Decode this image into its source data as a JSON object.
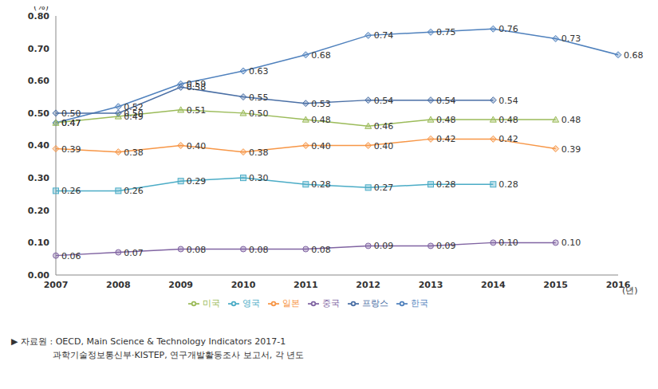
{
  "chart_data": {
    "type": "line",
    "y_label": "(%)",
    "x_label": "(년)",
    "categories": [
      "2007",
      "2008",
      "2009",
      "2010",
      "2011",
      "2012",
      "2013",
      "2014",
      "2015",
      "2016"
    ],
    "series": [
      {
        "name": "한국",
        "color": "#4f81bd",
        "marker": "diamond",
        "values": [
          0.47,
          0.52,
          0.59,
          0.63,
          0.68,
          0.74,
          0.75,
          0.76,
          0.73,
          0.68
        ],
        "value_labels": [
          "0.47",
          "0.52",
          "0.59",
          "0.63",
          "0.68",
          "0.74",
          "0.75",
          "0.76",
          "0.73",
          "0.68"
        ]
      },
      {
        "name": "미국",
        "color": "#9bbb59",
        "marker": "triangle",
        "values": [
          0.47,
          0.49,
          0.51,
          0.5,
          0.48,
          0.46,
          0.48,
          0.48,
          0.48,
          null
        ],
        "value_labels": [
          "0.47",
          "0.49",
          "0.51",
          "0.50",
          "0.48",
          "0.46",
          "0.48",
          "0.48",
          "0.48",
          null
        ]
      },
      {
        "name": "일본",
        "color": "#f79646",
        "marker": "diamond",
        "values": [
          0.39,
          0.38,
          0.4,
          0.38,
          0.4,
          0.4,
          0.42,
          0.42,
          0.39,
          null
        ],
        "value_labels": [
          "0.39",
          "0.38",
          "0.40",
          "0.38",
          "0.40",
          "0.40",
          "0.42",
          "0.42",
          "0.39",
          null
        ]
      },
      {
        "name": "프랑스",
        "color": "#4a6fa5",
        "marker": "diamond",
        "values": [
          0.5,
          0.5,
          0.58,
          0.55,
          0.53,
          0.54,
          0.54,
          0.54,
          null,
          null
        ],
        "value_labels": [
          "0.50",
          "0.50",
          "0.58",
          "0.55",
          "0.53",
          "0.54",
          "0.54",
          "0.54",
          null,
          null
        ]
      },
      {
        "name": "영국",
        "color": "#4bacc6",
        "marker": "square",
        "values": [
          0.26,
          0.26,
          0.29,
          0.3,
          0.28,
          0.27,
          0.28,
          0.28,
          null,
          null
        ],
        "value_labels": [
          "0.26",
          "0.26",
          "0.29",
          "0.30",
          "0.28",
          "0.27",
          "0.28",
          "0.28",
          null,
          null
        ]
      },
      {
        "name": "중국",
        "color": "#8064a2",
        "marker": "circle",
        "values": [
          0.06,
          0.07,
          0.08,
          0.08,
          0.08,
          0.09,
          0.09,
          0.1,
          0.1,
          null
        ],
        "value_labels": [
          "0.06",
          "0.07",
          "0.08",
          "0.08",
          "0.08",
          "0.09",
          "0.09",
          "0.10",
          "0.10",
          null
        ]
      }
    ],
    "ylim": [
      0,
      0.8
    ],
    "yticks": [
      {
        "value": 0,
        "label": "0.00"
      },
      {
        "value": 0.1,
        "label": "0.10"
      },
      {
        "value": 0.2,
        "label": "0.20"
      },
      {
        "value": 0.3,
        "label": "0.30"
      },
      {
        "value": 0.4,
        "label": "0.40"
      },
      {
        "value": 0.5,
        "label": "0.50"
      },
      {
        "value": 0.6,
        "label": "0.60"
      },
      {
        "value": 0.7,
        "label": "0.70"
      },
      {
        "value": 0.8,
        "label": "0.80"
      }
    ],
    "grid": false,
    "legend": "bottom",
    "data_labels": true,
    "source": [
      "▶ 자료원 : OECD, Main Science & Technology Indicators 2017-1",
      "과학기술정보통신부·KISTEP, 연구개발활동조사 보고서, 각 년도"
    ]
  }
}
